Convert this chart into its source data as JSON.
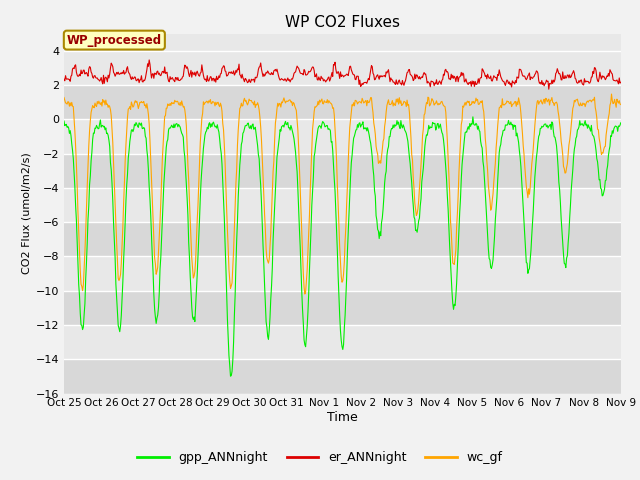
{
  "title": "WP CO2 Fluxes",
  "xlabel": "Time",
  "ylabel": "CO2 Flux (umol/m2/s)",
  "ylim": [
    -16,
    5
  ],
  "yticks": [
    -16,
    -14,
    -12,
    -10,
    -8,
    -6,
    -4,
    -2,
    0,
    2,
    4
  ],
  "bg_color": "#e8e8e8",
  "fig_color": "#f2f2f2",
  "legend_label": "WP_processed",
  "series": [
    "gpp_ANNnight",
    "er_ANNnight",
    "wc_gf"
  ],
  "colors": [
    "#00ee00",
    "#dd0000",
    "#ffa500"
  ],
  "line_width": 0.8,
  "n_days": 15,
  "xtick_labels": [
    "Oct 25",
    "Oct 26",
    "Oct 27",
    "Oct 28",
    "Oct 29",
    "Oct 30",
    "Oct 31",
    "Nov 1",
    "Nov 2",
    "Nov 3",
    "Nov 4",
    "Nov 5",
    "Nov 6",
    "Nov 7",
    "Nov 8",
    "Nov 9"
  ],
  "day_amp_gpp": [
    12,
    12,
    11.5,
    11.5,
    14.7,
    12.3,
    12.8,
    13.2,
    6.5,
    6.2,
    10.8,
    8.5,
    8.5,
    8.2,
    4.0
  ],
  "day_amp_wc": [
    10,
    9.5,
    9.0,
    9.2,
    9.8,
    8.5,
    10.2,
    9.5,
    2.5,
    5.5,
    8.5,
    5.0,
    4.5,
    3.0,
    2.0
  ],
  "day_amp_er": [
    1.3,
    1.3,
    1.3,
    1.3,
    1.3,
    1.3,
    1.3,
    1.3,
    1.1,
    1.1,
    1.1,
    1.1,
    1.1,
    1.1,
    1.1
  ],
  "er_base": 1.0,
  "gpp_night_base": -0.3
}
